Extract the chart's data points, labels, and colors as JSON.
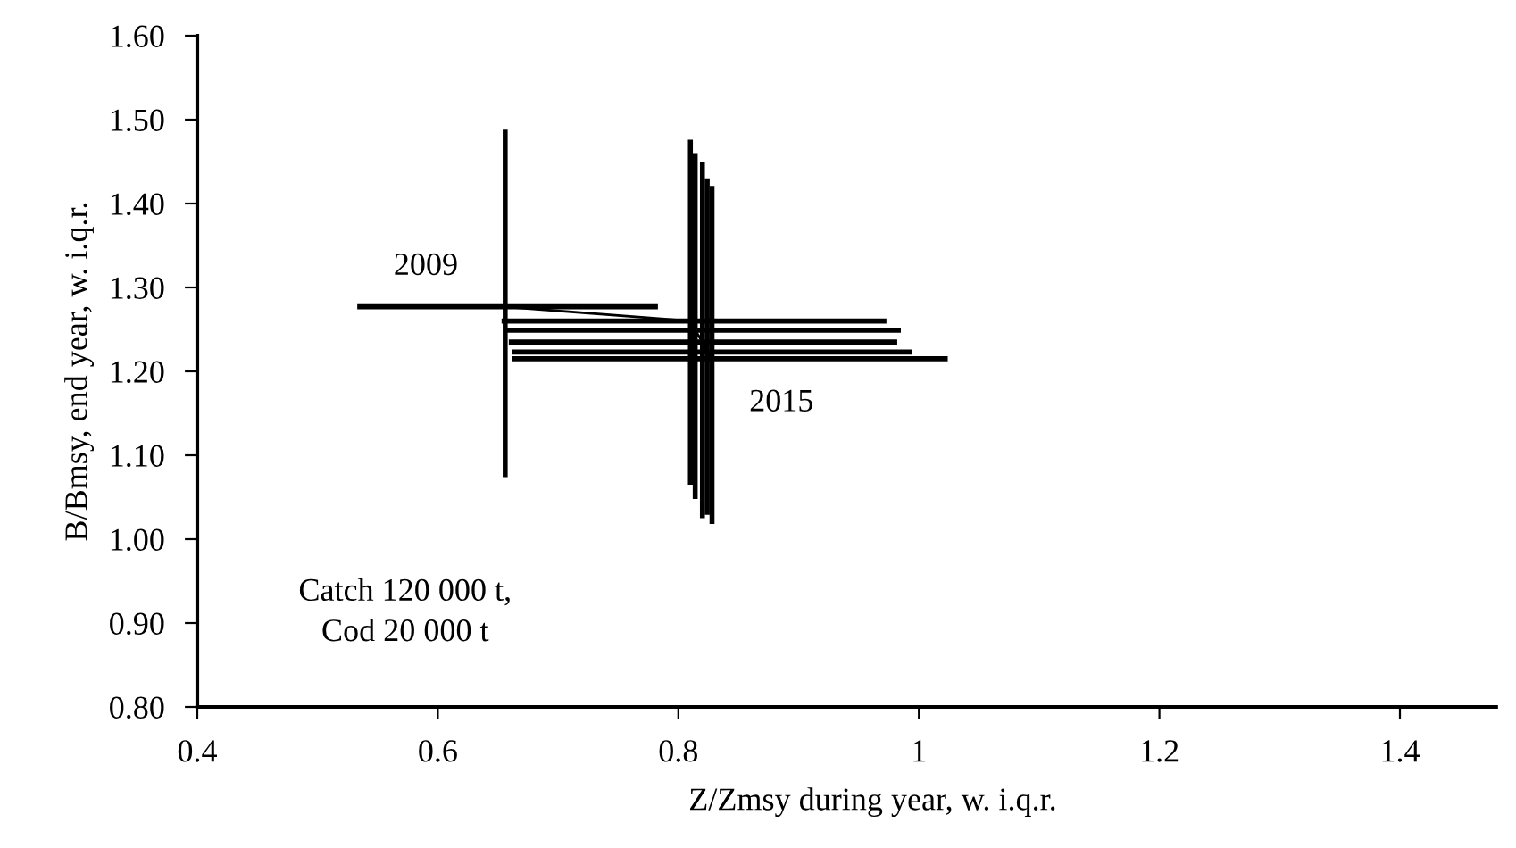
{
  "chart_data": {
    "type": "line",
    "xlabel": "Z/Zmsy during year, w. i.q.r.",
    "ylabel": "B/Bmsy, end year, w. i.q.r.",
    "series": [
      {
        "color": "#000000",
        "x": [
          0.656,
          0.81,
          0.814,
          0.82,
          0.824,
          0.828
        ],
        "values": [
          1.277,
          1.26,
          1.249,
          1.235,
          1.223,
          1.215
        ],
        "errors": [
          [
            1.074,
            1.488
          ],
          [
            1.065,
            1.476
          ],
          [
            1.048,
            1.46
          ],
          [
            1.025,
            1.45
          ],
          [
            1.029,
            1.43
          ],
          [
            1.018,
            1.421
          ]
        ],
        "xerrors": [
          [
            0.533,
            0.783
          ],
          [
            0.653,
            0.973
          ],
          [
            0.657,
            0.985
          ],
          [
            0.659,
            0.982
          ],
          [
            0.662,
            0.994
          ],
          [
            0.662,
            1.024
          ]
        ]
      }
    ],
    "marker": "none",
    "line_style": "solid",
    "xlim": [
      0.4,
      1.48
    ],
    "xticks": [
      0.4,
      0.6,
      0.8,
      {
        "value": 1.0,
        "label": "1"
      },
      1.2,
      1.4
    ],
    "ylim": [
      0.8,
      1.6
    ],
    "yticks": [
      {
        "value": 0.8,
        "label": "0.80"
      },
      {
        "value": 0.9,
        "label": "0.90"
      },
      {
        "value": 1.0,
        "label": "1.00"
      },
      {
        "value": 1.1,
        "label": "1.10"
      },
      {
        "value": 1.2,
        "label": "1.20"
      },
      {
        "value": 1.3,
        "label": "1.30"
      },
      {
        "value": 1.4,
        "label": "1.40"
      },
      {
        "value": 1.5,
        "label": "1.50"
      },
      {
        "value": 1.6,
        "label": "1.60"
      }
    ],
    "grid": false,
    "annotations": [
      {
        "text": "2009",
        "x": 0.656,
        "y": 1.277
      },
      {
        "text": "2015",
        "x": 0.828,
        "y": 1.215
      },
      "Catch 120 000 t,\nCod 20 000 t"
    ]
  }
}
